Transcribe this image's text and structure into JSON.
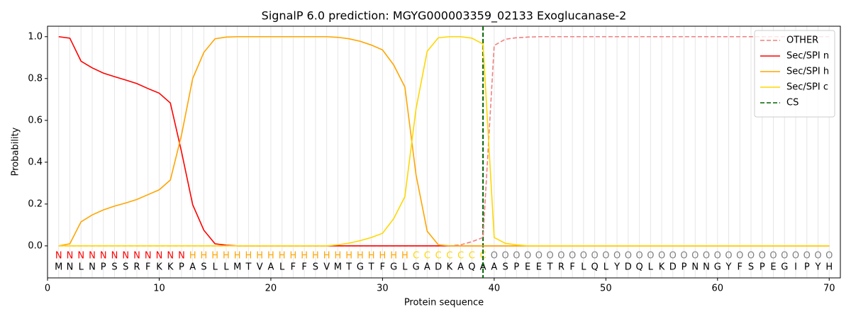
{
  "chart_data": {
    "type": "line",
    "title": "SignalP 6.0 prediction: MGYG000003359_02133 Exoglucanase-2",
    "xlabel": "Protein sequence",
    "ylabel": "Probability",
    "x": [
      1,
      2,
      3,
      4,
      5,
      6,
      7,
      8,
      9,
      10,
      11,
      12,
      13,
      14,
      15,
      16,
      17,
      18,
      19,
      20,
      21,
      22,
      23,
      24,
      25,
      26,
      27,
      28,
      29,
      30,
      31,
      32,
      33,
      34,
      35,
      36,
      37,
      38,
      39,
      40,
      41,
      42,
      43,
      44,
      45,
      46,
      47,
      48,
      49,
      50,
      51,
      52,
      53,
      54,
      55,
      56,
      57,
      58,
      59,
      60,
      61,
      62,
      63,
      64,
      65,
      66,
      67,
      68,
      69,
      70
    ],
    "series": [
      {
        "name": "OTHER",
        "color": "#f08080",
        "dash": true,
        "values": [
          0,
          0,
          0,
          0,
          0,
          0,
          0,
          0,
          0,
          0,
          0,
          0,
          0,
          0,
          0,
          0,
          0,
          0,
          0,
          0,
          0,
          0,
          0,
          0,
          0,
          0,
          0,
          0,
          0,
          0,
          0,
          0,
          0,
          0,
          0,
          0,
          0.005,
          0.02,
          0.04,
          0.958,
          0.988,
          0.995,
          0.998,
          1,
          1,
          1,
          1,
          1,
          1,
          1,
          1,
          1,
          1,
          1,
          1,
          1,
          1,
          1,
          1,
          1,
          1,
          1,
          1,
          1,
          1,
          1,
          1,
          1,
          1,
          1
        ]
      },
      {
        "name": "Sec/SPI n",
        "color": "#ff0000",
        "dash": false,
        "values": [
          1.0,
          0.993,
          0.883,
          0.851,
          0.826,
          0.809,
          0.793,
          0.776,
          0.752,
          0.73,
          0.683,
          0.45,
          0.197,
          0.075,
          0.01,
          0.003,
          0,
          0,
          0,
          0,
          0,
          0,
          0,
          0,
          0,
          0,
          0,
          0,
          0,
          0,
          0,
          0,
          0,
          0,
          0,
          0,
          0,
          0,
          0,
          0,
          0,
          0,
          0,
          0,
          0,
          0,
          0,
          0,
          0,
          0,
          0,
          0,
          0,
          0,
          0,
          0,
          0,
          0,
          0,
          0,
          0,
          0,
          0,
          0,
          0,
          0,
          0,
          0,
          0,
          0
        ]
      },
      {
        "name": "Sec/SPI h",
        "color": "#ffa500",
        "dash": false,
        "values": [
          0,
          0.01,
          0.115,
          0.148,
          0.172,
          0.19,
          0.205,
          0.222,
          0.245,
          0.268,
          0.315,
          0.53,
          0.8,
          0.925,
          0.99,
          0.998,
          1,
          1,
          1,
          1,
          1,
          1,
          1,
          1,
          1,
          0.997,
          0.99,
          0.978,
          0.96,
          0.937,
          0.865,
          0.76,
          0.34,
          0.07,
          0.005,
          0,
          0,
          0,
          0,
          0,
          0,
          0,
          0,
          0,
          0,
          0,
          0,
          0,
          0,
          0,
          0,
          0,
          0,
          0,
          0,
          0,
          0,
          0,
          0,
          0,
          0,
          0,
          0,
          0,
          0,
          0,
          0,
          0,
          0,
          0
        ]
      },
      {
        "name": "Sec/SPI c",
        "color": "#ffd700",
        "dash": false,
        "values": [
          0,
          0,
          0,
          0,
          0,
          0,
          0,
          0,
          0,
          0,
          0,
          0,
          0,
          0,
          0,
          0,
          0,
          0,
          0,
          0,
          0,
          0,
          0,
          0,
          0,
          0.005,
          0.013,
          0.025,
          0.04,
          0.06,
          0.13,
          0.235,
          0.655,
          0.93,
          0.995,
          1.0,
          1.0,
          0.993,
          0.965,
          0.04,
          0.012,
          0.005,
          0,
          0,
          0,
          0,
          0,
          0,
          0,
          0,
          0,
          0,
          0,
          0,
          0,
          0,
          0,
          0,
          0,
          0,
          0,
          0,
          0,
          0,
          0,
          0,
          0,
          0,
          0,
          0
        ]
      }
    ],
    "markers": [
      {
        "name": "CS",
        "x": 39,
        "color": "#006400"
      }
    ],
    "labels": [
      "N",
      "N",
      "N",
      "N",
      "N",
      "N",
      "N",
      "N",
      "N",
      "N",
      "N",
      "N",
      "H",
      "H",
      "H",
      "H",
      "H",
      "H",
      "H",
      "H",
      "H",
      "H",
      "H",
      "H",
      "H",
      "H",
      "H",
      "H",
      "H",
      "H",
      "H",
      "H",
      "C",
      "C",
      "C",
      "C",
      "C",
      "C",
      "C",
      "O",
      "O",
      "O",
      "O",
      "O",
      "O",
      "O",
      "O",
      "O",
      "O",
      "O",
      "O",
      "O",
      "O",
      "O",
      "O",
      "O",
      "O",
      "O",
      "O",
      "O",
      "O",
      "O",
      "O",
      "O",
      "O",
      "O",
      "O",
      "O",
      "O",
      "O"
    ],
    "label_colors": {
      "N": "#ff0000",
      "H": "#ffa500",
      "C": "#ffd700",
      "O": "#808080"
    },
    "sequence": [
      "M",
      "N",
      "L",
      "N",
      "P",
      "S",
      "S",
      "R",
      "F",
      "K",
      "K",
      "P",
      "A",
      "S",
      "L",
      "L",
      "M",
      "T",
      "V",
      "A",
      "L",
      "F",
      "F",
      "S",
      "V",
      "M",
      "T",
      "G",
      "T",
      "F",
      "G",
      "L",
      "G",
      "A",
      "D",
      "K",
      "A",
      "Q",
      "A",
      "A",
      "S",
      "P",
      "E",
      "E",
      "T",
      "R",
      "F",
      "L",
      "Q",
      "L",
      "Y",
      "D",
      "Q",
      "L",
      "K",
      "D",
      "P",
      "N",
      "N",
      "G",
      "Y",
      "F",
      "S",
      "P",
      "E",
      "G",
      "I",
      "P",
      "Y",
      "H"
    ],
    "xlim": [
      0,
      71
    ],
    "xticks": [
      0,
      10,
      20,
      30,
      40,
      50,
      60,
      70
    ],
    "ylim": [
      -0.153,
      1.05
    ],
    "yticks": [
      {
        "value": 0,
        "label": "0.0"
      },
      {
        "value": 0.2,
        "label": "0.2"
      },
      {
        "value": 0.4,
        "label": "0.4"
      },
      {
        "value": 0.6,
        "label": "0.6"
      },
      {
        "value": 0.8,
        "label": "0.8"
      },
      {
        "value": 1.0,
        "label": "1.0"
      }
    ],
    "grid": true,
    "legend": "upper right"
  }
}
